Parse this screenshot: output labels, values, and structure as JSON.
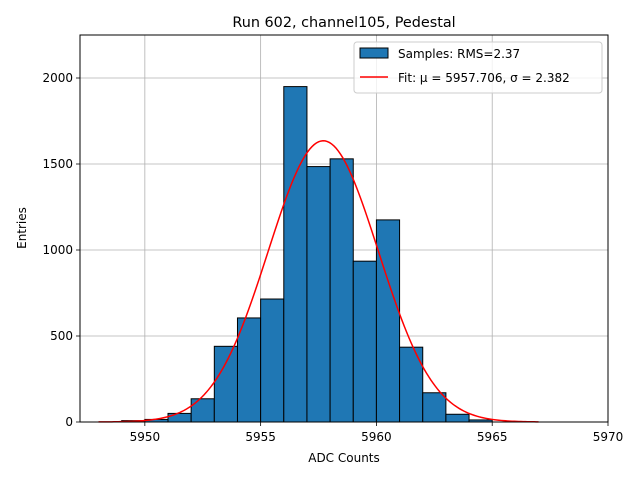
{
  "chart_data": {
    "type": "bar",
    "title": "Run 602, channel105, Pedestal",
    "xlabel": "ADC Counts",
    "ylabel": "Entries",
    "xlim": [
      5947.2,
      5970.0
    ],
    "ylim": [
      0,
      2250
    ],
    "xticks": [
      5950,
      5955,
      5960,
      5965,
      5970
    ],
    "xtick_labels": [
      "5950",
      "5955",
      "5960",
      "5965",
      "5970"
    ],
    "yticks": [
      0,
      500,
      1000,
      1500,
      2000
    ],
    "ytick_labels": [
      "0",
      "500",
      "1000",
      "1500",
      "2000"
    ],
    "grid": true,
    "legend_position": "top-right",
    "bar_color": "#1f77b4",
    "fit_color": "#ff0000",
    "bins": [
      {
        "x0": 5949.0,
        "x1": 5950.0,
        "count": 8
      },
      {
        "x0": 5950.0,
        "x1": 5951.0,
        "count": 15
      },
      {
        "x0": 5951.0,
        "x1": 5952.0,
        "count": 50
      },
      {
        "x0": 5952.0,
        "x1": 5953.0,
        "count": 135
      },
      {
        "x0": 5953.0,
        "x1": 5954.0,
        "count": 440
      },
      {
        "x0": 5954.0,
        "x1": 5955.0,
        "count": 605
      },
      {
        "x0": 5955.0,
        "x1": 5956.0,
        "count": 715
      },
      {
        "x0": 5956.0,
        "x1": 5957.0,
        "count": 1950
      },
      {
        "x0": 5957.0,
        "x1": 5958.0,
        "count": 1485
      },
      {
        "x0": 5958.0,
        "x1": 5959.0,
        "count": 1530
      },
      {
        "x0": 5959.0,
        "x1": 5960.0,
        "count": 935
      },
      {
        "x0": 5960.0,
        "x1": 5961.0,
        "count": 1175
      },
      {
        "x0": 5961.0,
        "x1": 5962.0,
        "count": 435
      },
      {
        "x0": 5962.0,
        "x1": 5963.0,
        "count": 170
      },
      {
        "x0": 5963.0,
        "x1": 5964.0,
        "count": 45
      },
      {
        "x0": 5964.0,
        "x1": 5965.0,
        "count": 12
      }
    ],
    "fit": {
      "mu": 5957.706,
      "sigma": 2.382,
      "amplitude": 1635,
      "x_range": [
        5948.0,
        5967.0
      ]
    },
    "legend": [
      {
        "label": "Samples: RMS=2.37",
        "kind": "patch"
      },
      {
        "label": "Fit: μ = 5957.706, σ = 2.382",
        "kind": "line"
      }
    ]
  }
}
